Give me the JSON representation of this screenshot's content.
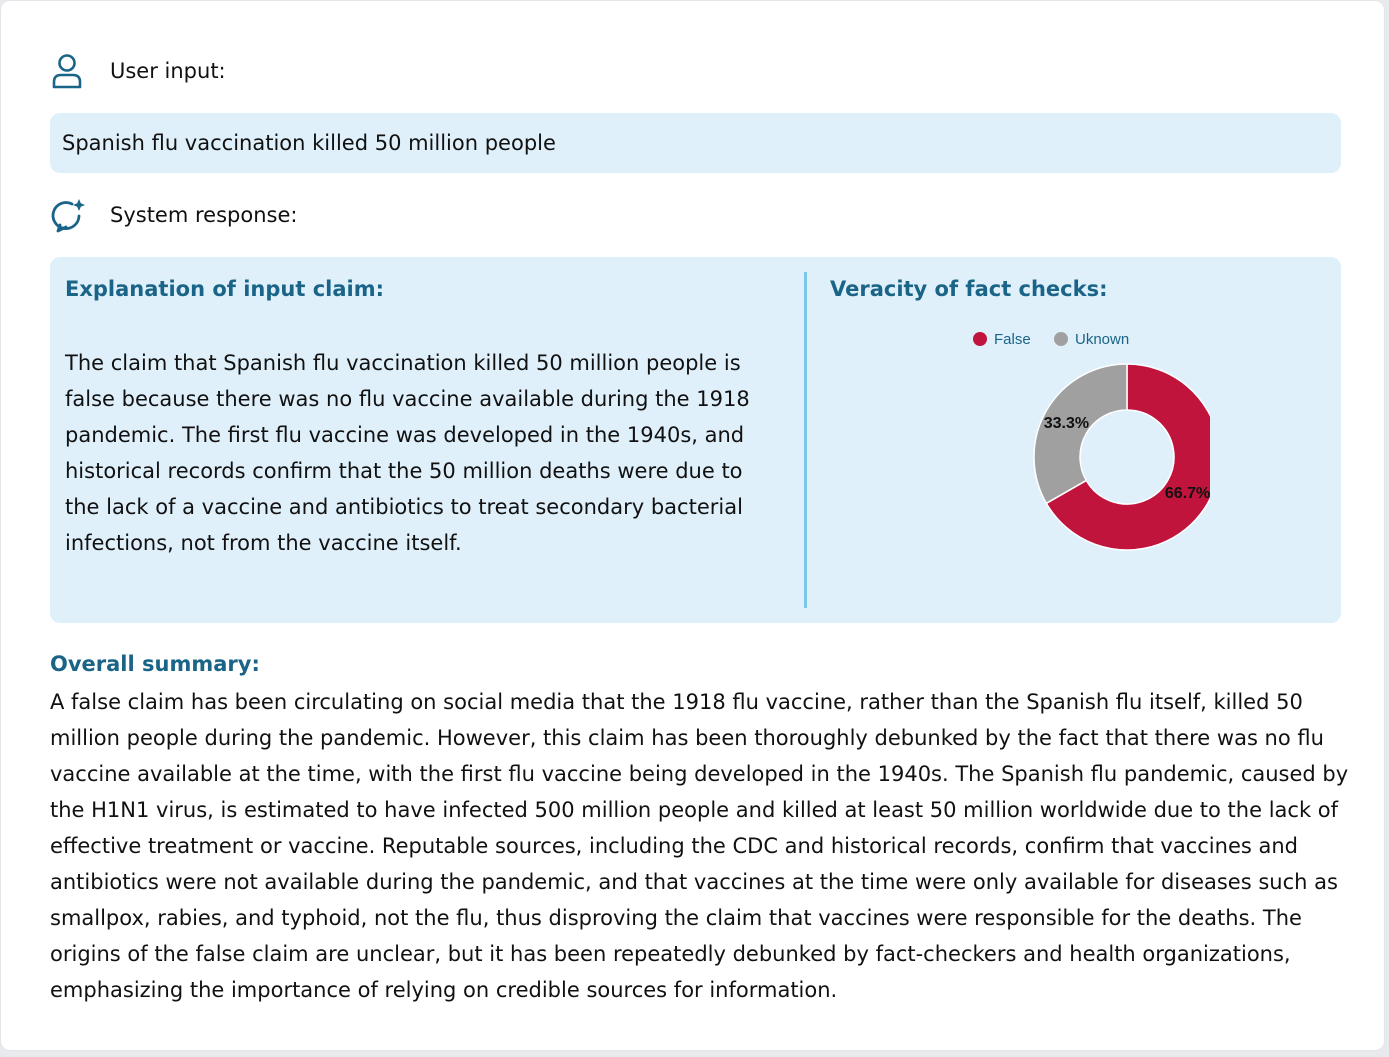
{
  "user": {
    "label": "User input:",
    "claim": "Spanish flu vaccination killed 50 million people"
  },
  "system": {
    "label": "System response:"
  },
  "explanation": {
    "title": "Explanation of input claim:",
    "text": "The claim that Spanish flu vaccination killed 50 million people is false because there was no flu vaccine available during the 1918 pandemic. The first flu vaccine was developed in the 1940s, and historical records confirm that the 50 million deaths were due to the lack of a vaccine and antibiotics to treat secondary bacterial infections, not from the vaccine itself."
  },
  "veracity": {
    "title": "Veracity of fact checks:"
  },
  "chart_data": {
    "type": "pie",
    "variant": "donut",
    "categories": [
      "False",
      "Uknown"
    ],
    "values": [
      66.7,
      33.3
    ],
    "labels": [
      "66.7%",
      "33.3%"
    ],
    "colors": [
      "#c0143c",
      "#a0a0a0"
    ],
    "legend": "top"
  },
  "summary": {
    "title": "Overall summary:",
    "text": "A false claim has been circulating on social media that the 1918 flu vaccine, rather than the Spanish flu itself, killed 50 million people during the pandemic. However, this claim has been thoroughly debunked by the fact that there was no flu vaccine available at the time, with the first flu vaccine being developed in the 1940s. The Spanish flu pandemic, caused by the H1N1 virus, is estimated to have infected 500 million people and killed at least 50 million worldwide due to the lack of effective treatment or vaccine. Reputable sources, including the CDC and historical records, confirm that vaccines and antibiotics were not available during the pandemic, and that vaccines at the time were only available for diseases such as smallpox, rabies, and typhoid, not the flu, thus disproving the claim that vaccines were responsible for the deaths. The origins of the false claim are unclear, but it has been repeatedly debunked by fact-checkers and health organizations, emphasizing the importance of relying on credible sources for information."
  },
  "icons": {
    "user": "user-icon",
    "system": "chat-sparkle-icon"
  }
}
